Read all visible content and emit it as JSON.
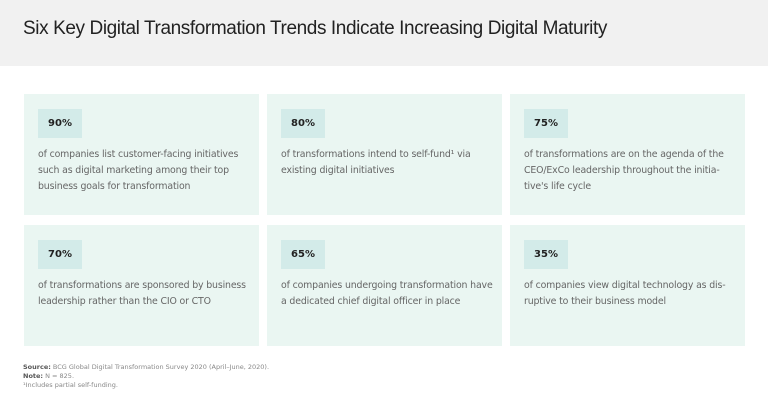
{
  "title": "Six Key Digital Transformation Trends Indicate Increasing Digital Maturity",
  "colors": {
    "card": "#eaf6f2",
    "badge": "#d3ebe9",
    "header": "#f1f1f1"
  },
  "cards": [
    {
      "value": "90%",
      "text": "of companies list customer-facing initiatives such as digital marketing among their top business goals for transformation"
    },
    {
      "value": "80%",
      "text": "of transformations intend to self-fund¹ via existing digital initiatives"
    },
    {
      "value": "75%",
      "text": "of transformations are on the agenda of the CEO/ExCo leadership throughout the initia-tive's life cycle"
    },
    {
      "value": "70%",
      "text": "of transformations are sponsored by business leadership rather than the CIO or CTO"
    },
    {
      "value": "65%",
      "text": "of companies undergoing transformation have a dedicated chief digital officer in place"
    },
    {
      "value": "35%",
      "text": "of companies view digital technology as dis-ruptive to their business model"
    }
  ],
  "footer": {
    "source_label": "Source:",
    "source": " BCG Global Digital Transformation Survey 2020 (April–June, 2020).",
    "note_label": "Note:",
    "note": " N = 825.",
    "footnote": "¹Includes partial self-funding."
  }
}
